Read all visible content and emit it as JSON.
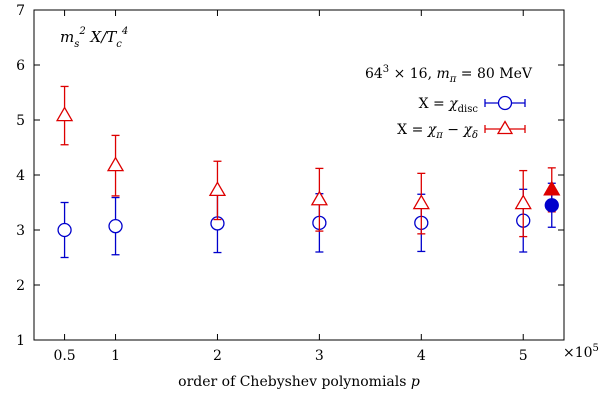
{
  "chart_data": {
    "type": "scatter",
    "title": "",
    "ylabel": "m_s^2 X/T_c^4",
    "xlabel": "order of Chebyshev polynomials p",
    "x_multiplier": "×10^5",
    "xlim": [
      0.2,
      5.4
    ],
    "ylim": [
      1,
      7
    ],
    "xticks": [
      0.5,
      1,
      2,
      3,
      4,
      5
    ],
    "xtick_labels": [
      "0.5",
      "1",
      "2",
      "3",
      "4",
      "5"
    ],
    "yticks": [
      1,
      2,
      3,
      4,
      5,
      6,
      7
    ],
    "ytick_labels": [
      "1",
      "2",
      "3",
      "4",
      "5",
      "6",
      "7"
    ],
    "grid": false,
    "legend_placement": "top-right",
    "legend_title": "64^3 × 16, m_π = 80 MeV",
    "series": [
      {
        "name": "X = χ_disc",
        "color": "#0000cc",
        "marker": "open-circle",
        "x": [
          0.5,
          1,
          2,
          3,
          4,
          5
        ],
        "y": [
          3.0,
          3.07,
          3.12,
          3.13,
          3.13,
          3.17
        ],
        "yerr": [
          0.5,
          0.52,
          0.53,
          0.53,
          0.52,
          0.57
        ]
      },
      {
        "name": "X = χ_π − χ_δ",
        "color": "#dd0000",
        "marker": "open-triangle",
        "x": [
          0.5,
          1,
          2,
          3,
          4,
          5
        ],
        "y": [
          5.08,
          4.17,
          3.72,
          3.55,
          3.48,
          3.48
        ],
        "yerr": [
          0.53,
          0.55,
          0.53,
          0.57,
          0.55,
          0.6
        ]
      }
    ],
    "extrapolated": [
      {
        "series": "X = χ_π − χ_δ",
        "color": "#dd0000",
        "marker": "filled-triangle",
        "x": 5.28,
        "y": 3.73,
        "yerr": 0.4
      },
      {
        "series": "X = χ_disc",
        "color": "#0000cc",
        "marker": "filled-circle",
        "x": 5.28,
        "y": 3.45,
        "yerr": 0.4
      }
    ]
  }
}
